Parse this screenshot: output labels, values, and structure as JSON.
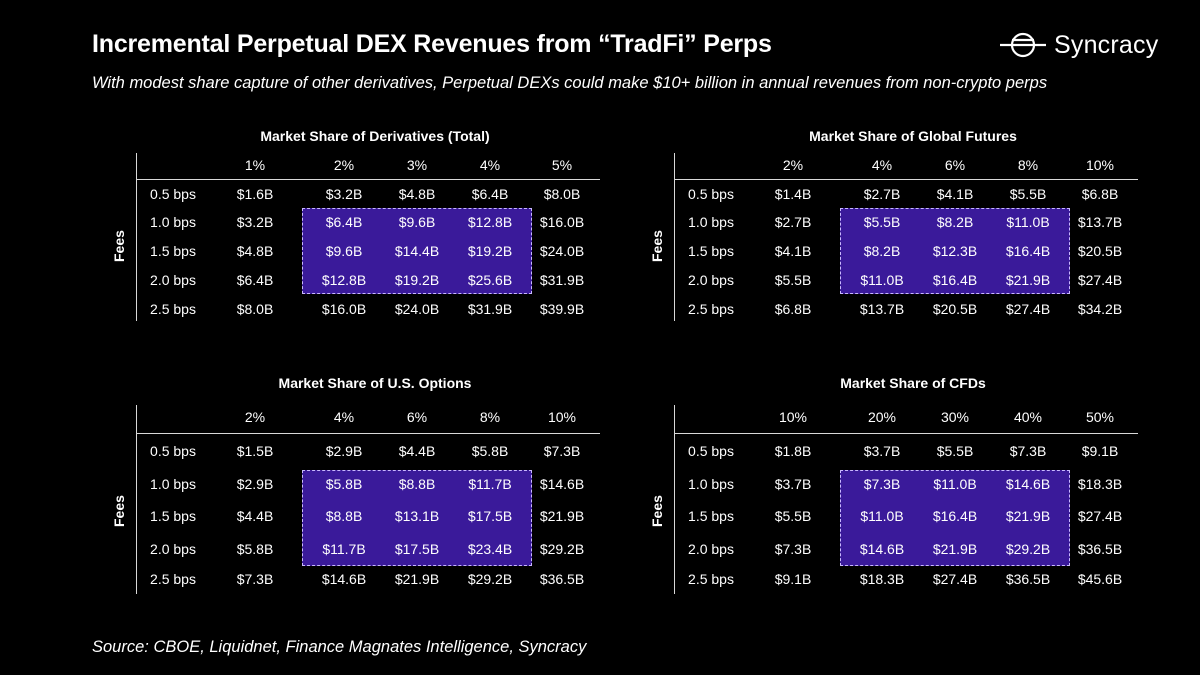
{
  "header": {
    "title": "Incremental Perpetual DEX Revenues from “TradFi” Perps",
    "subtitle": "With modest share capture of other derivatives, Perpetual DEXs could make $10+ billion in annual revenues from non-crypto perps",
    "logo_text": "Syncracy",
    "logo_icon": "syncracy-logo-icon"
  },
  "footer": {
    "source": "Source: CBOE, Liquidnet, Finance Magnates Intelligence, Syncracy"
  },
  "colors": {
    "background": "#000000",
    "highlight": "#3a1a9a",
    "highlight_border": "#c9b8ff"
  },
  "chart_data": [
    {
      "type": "table",
      "title": "Market Share of Derivatives (Total)",
      "row_axis_label": "Fees",
      "columns": [
        "1%",
        "2%",
        "3%",
        "4%",
        "5%"
      ],
      "rows": [
        "0.5 bps",
        "1.0 bps",
        "1.5 bps",
        "2.0 bps",
        "2.5 bps"
      ],
      "cells": [
        [
          "$1.6B",
          "$3.2B",
          "$4.8B",
          "$6.4B",
          "$8.0B"
        ],
        [
          "$3.2B",
          "$6.4B",
          "$9.6B",
          "$12.8B",
          "$16.0B"
        ],
        [
          "$4.8B",
          "$9.6B",
          "$14.4B",
          "$19.2B",
          "$24.0B"
        ],
        [
          "$6.4B",
          "$12.8B",
          "$19.2B",
          "$25.6B",
          "$31.9B"
        ],
        [
          "$8.0B",
          "$16.0B",
          "$24.0B",
          "$31.9B",
          "$39.9B"
        ]
      ],
      "highlight": {
        "rows": [
          1,
          3
        ],
        "cols": [
          1,
          3
        ]
      }
    },
    {
      "type": "table",
      "title": "Market Share of Global Futures",
      "row_axis_label": "Fees",
      "columns": [
        "2%",
        "4%",
        "6%",
        "8%",
        "10%"
      ],
      "rows": [
        "0.5 bps",
        "1.0 bps",
        "1.5 bps",
        "2.0 bps",
        "2.5 bps"
      ],
      "cells": [
        [
          "$1.4B",
          "$2.7B",
          "$4.1B",
          "$5.5B",
          "$6.8B"
        ],
        [
          "$2.7B",
          "$5.5B",
          "$8.2B",
          "$11.0B",
          "$13.7B"
        ],
        [
          "$4.1B",
          "$8.2B",
          "$12.3B",
          "$16.4B",
          "$20.5B"
        ],
        [
          "$5.5B",
          "$11.0B",
          "$16.4B",
          "$21.9B",
          "$27.4B"
        ],
        [
          "$6.8B",
          "$13.7B",
          "$20.5B",
          "$27.4B",
          "$34.2B"
        ]
      ],
      "highlight": {
        "rows": [
          1,
          3
        ],
        "cols": [
          1,
          3
        ]
      }
    },
    {
      "type": "table",
      "title": "Market Share of U.S. Options",
      "row_axis_label": "Fees",
      "columns": [
        "2%",
        "4%",
        "6%",
        "8%",
        "10%"
      ],
      "rows": [
        "0.5 bps",
        "1.0 bps",
        "1.5 bps",
        "2.0 bps",
        "2.5 bps"
      ],
      "cells": [
        [
          "$1.5B",
          "$2.9B",
          "$4.4B",
          "$5.8B",
          "$7.3B"
        ],
        [
          "$2.9B",
          "$5.8B",
          "$8.8B",
          "$11.7B",
          "$14.6B"
        ],
        [
          "$4.4B",
          "$8.8B",
          "$13.1B",
          "$17.5B",
          "$21.9B"
        ],
        [
          "$5.8B",
          "$11.7B",
          "$17.5B",
          "$23.4B",
          "$29.2B"
        ],
        [
          "$7.3B",
          "$14.6B",
          "$21.9B",
          "$29.2B",
          "$36.5B"
        ]
      ],
      "highlight": {
        "rows": [
          1,
          3
        ],
        "cols": [
          1,
          3
        ]
      }
    },
    {
      "type": "table",
      "title": "Market Share of CFDs",
      "row_axis_label": "Fees",
      "columns": [
        "10%",
        "20%",
        "30%",
        "40%",
        "50%"
      ],
      "rows": [
        "0.5 bps",
        "1.0 bps",
        "1.5 bps",
        "2.0 bps",
        "2.5 bps"
      ],
      "cells": [
        [
          "$1.8B",
          "$3.7B",
          "$5.5B",
          "$7.3B",
          "$9.1B"
        ],
        [
          "$3.7B",
          "$7.3B",
          "$11.0B",
          "$14.6B",
          "$18.3B"
        ],
        [
          "$5.5B",
          "$11.0B",
          "$16.4B",
          "$21.9B",
          "$27.4B"
        ],
        [
          "$7.3B",
          "$14.6B",
          "$21.9B",
          "$29.2B",
          "$36.5B"
        ],
        [
          "$9.1B",
          "$18.3B",
          "$27.4B",
          "$36.5B",
          "$45.6B"
        ]
      ],
      "highlight": {
        "rows": [
          1,
          3
        ],
        "cols": [
          1,
          3
        ]
      }
    }
  ]
}
